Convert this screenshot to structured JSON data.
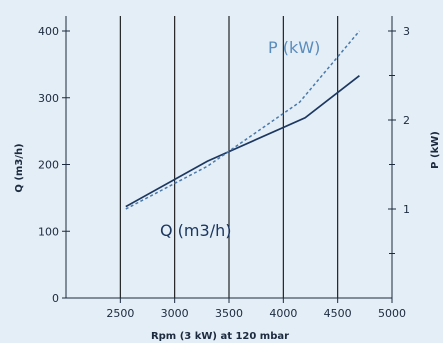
{
  "chart_data": {
    "type": "line",
    "xlabel": "Rpm (3 kW) at 120 mbar",
    "ylabel": "Q (m3/h)",
    "y2label": "P (kW)",
    "xlim": [
      2000,
      5000
    ],
    "ylim": [
      0,
      420
    ],
    "y2lim": [
      0,
      3.1
    ],
    "x_ticks": [
      2500,
      3000,
      3500,
      4000,
      4500,
      5000
    ],
    "y_ticks": [
      0,
      100,
      200,
      300,
      400
    ],
    "y2_ticks": [
      1,
      2,
      3
    ],
    "vertical_gridlines": [
      2500,
      3000,
      3500,
      4000,
      4500
    ],
    "series": [
      {
        "name": "Q (m3/h)",
        "axis": "left",
        "style": "solid",
        "color": "#1c3760",
        "x": [
          2550,
          3300,
          4200,
          4700
        ],
        "y": [
          137,
          205,
          270,
          333
        ]
      },
      {
        "name": "P (kW)",
        "axis": "right",
        "style": "dashed",
        "color": "#4a78aa",
        "x": [
          2550,
          3300,
          4150,
          4700
        ],
        "y": [
          1.0,
          1.48,
          2.2,
          3.0
        ]
      }
    ],
    "annotations": [
      {
        "text": "P (kW)",
        "series": 1
      },
      {
        "text": "Q (m3/h)",
        "series": 0
      }
    ]
  }
}
